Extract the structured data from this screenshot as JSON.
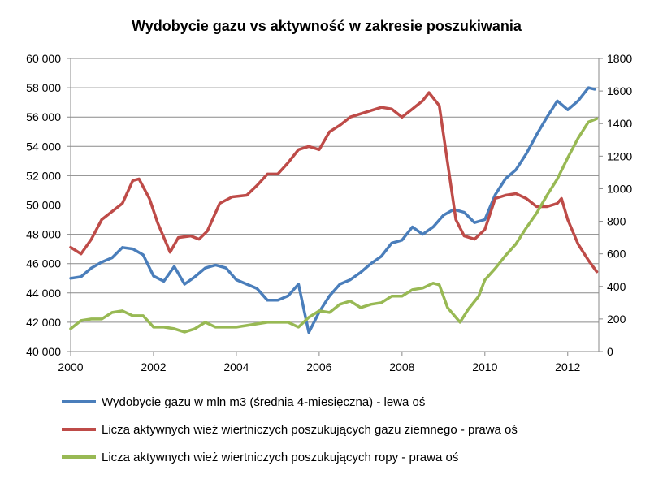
{
  "chart_data": {
    "type": "line",
    "title": "Wydobycie gazu vs aktywność w zakresie poszukiwania",
    "xlim": [
      2000,
      2012.75
    ],
    "x_ticks": [
      "2000",
      "2002",
      "2004",
      "2006",
      "2008",
      "2010",
      "2012"
    ],
    "y_left": {
      "lim": [
        40000,
        60000
      ],
      "ticks": [
        "40 000",
        "42 000",
        "44 000",
        "46 000",
        "48 000",
        "50 000",
        "52 000",
        "54 000",
        "56 000",
        "58 000",
        "60 000"
      ]
    },
    "y_right": {
      "lim": [
        0,
        1800
      ],
      "ticks": [
        "0",
        "200",
        "400",
        "600",
        "800",
        "1000",
        "1200",
        "1400",
        "1600",
        "1800"
      ]
    },
    "grid": "horizontal",
    "legend_position": "bottom",
    "series": [
      {
        "name": "Wydobycie gazu w mln m3 (średnia 4-miesięczna) - lewa oś",
        "axis": "left",
        "color": "#4a7ebb",
        "x": [
          2000,
          2000.25,
          2000.5,
          2000.75,
          2001,
          2001.25,
          2001.5,
          2001.75,
          2002,
          2002.25,
          2002.5,
          2002.75,
          2003,
          2003.25,
          2003.5,
          2003.75,
          2004,
          2004.25,
          2004.5,
          2004.75,
          2005,
          2005.25,
          2005.5,
          2005.75,
          2006,
          2006.25,
          2006.5,
          2006.75,
          2007,
          2007.25,
          2007.5,
          2007.75,
          2008,
          2008.25,
          2008.5,
          2008.75,
          2009,
          2009.25,
          2009.5,
          2009.75,
          2010,
          2010.25,
          2010.5,
          2010.75,
          2011,
          2011.25,
          2011.5,
          2011.75,
          2012,
          2012.25,
          2012.5,
          2012.65
        ],
        "y": [
          45000,
          45100,
          45700,
          46100,
          46400,
          47100,
          47000,
          46600,
          45150,
          44800,
          45800,
          44600,
          45100,
          45700,
          45900,
          45700,
          44900,
          44600,
          44300,
          43500,
          43500,
          43800,
          44600,
          41300,
          42700,
          43800,
          44600,
          44900,
          45400,
          46000,
          46500,
          47400,
          47600,
          48500,
          48000,
          48500,
          49300,
          49700,
          49500,
          48800,
          49000,
          50700,
          51800,
          52400,
          53500,
          54800,
          56000,
          57100,
          56500,
          57100,
          58000,
          57900
        ]
      },
      {
        "name": "Licza aktywnych wież wiertniczych poszukujących gazu ziemnego - prawa oś",
        "axis": "right",
        "color": "#be4b48",
        "x": [
          2000,
          2000.25,
          2000.5,
          2000.75,
          2001,
          2001.25,
          2001.5,
          2001.65,
          2001.9,
          2002.1,
          2002.4,
          2002.6,
          2002.9,
          2003.1,
          2003.3,
          2003.6,
          2003.9,
          2004.25,
          2004.5,
          2004.75,
          2005,
          2005.25,
          2005.5,
          2005.75,
          2006,
          2006.25,
          2006.5,
          2006.75,
          2007,
          2007.25,
          2007.5,
          2007.75,
          2008,
          2008.25,
          2008.5,
          2008.65,
          2008.9,
          2009.1,
          2009.3,
          2009.5,
          2009.75,
          2010,
          2010.25,
          2010.5,
          2010.75,
          2011,
          2011.25,
          2011.5,
          2011.75,
          2011.85,
          2012,
          2012.25,
          2012.5,
          2012.7
        ],
        "y": [
          640,
          600,
          690,
          810,
          860,
          910,
          1050,
          1060,
          940,
          790,
          610,
          700,
          710,
          690,
          740,
          910,
          950,
          960,
          1020,
          1090,
          1090,
          1160,
          1240,
          1260,
          1240,
          1350,
          1390,
          1440,
          1460,
          1480,
          1500,
          1490,
          1440,
          1490,
          1540,
          1590,
          1510,
          1160,
          810,
          710,
          690,
          750,
          940,
          960,
          970,
          940,
          890,
          890,
          910,
          940,
          810,
          660,
          560,
          490
        ]
      },
      {
        "name": "Licza aktywnych wież wiertniczych poszukujących ropy - prawa oś",
        "axis": "right",
        "color": "#98b954",
        "x": [
          2000,
          2000.25,
          2000.5,
          2000.75,
          2001,
          2001.25,
          2001.5,
          2001.75,
          2002,
          2002.25,
          2002.5,
          2002.75,
          2003,
          2003.25,
          2003.5,
          2003.75,
          2004,
          2004.25,
          2004.5,
          2004.75,
          2005,
          2005.25,
          2005.5,
          2005.75,
          2006,
          2006.25,
          2006.5,
          2006.75,
          2007,
          2007.25,
          2007.5,
          2007.75,
          2008,
          2008.25,
          2008.5,
          2008.75,
          2008.9,
          2009.1,
          2009.4,
          2009.6,
          2009.85,
          2010,
          2010.25,
          2010.5,
          2010.75,
          2011,
          2011.25,
          2011.5,
          2011.75,
          2012,
          2012.25,
          2012.5,
          2012.7
        ],
        "y": [
          140,
          190,
          200,
          200,
          240,
          250,
          220,
          220,
          150,
          150,
          140,
          120,
          140,
          180,
          150,
          150,
          150,
          160,
          170,
          180,
          180,
          180,
          150,
          210,
          250,
          240,
          290,
          310,
          270,
          290,
          300,
          340,
          340,
          380,
          390,
          420,
          410,
          270,
          180,
          260,
          340,
          440,
          510,
          590,
          660,
          760,
          850,
          960,
          1060,
          1190,
          1310,
          1410,
          1430
        ]
      }
    ]
  }
}
